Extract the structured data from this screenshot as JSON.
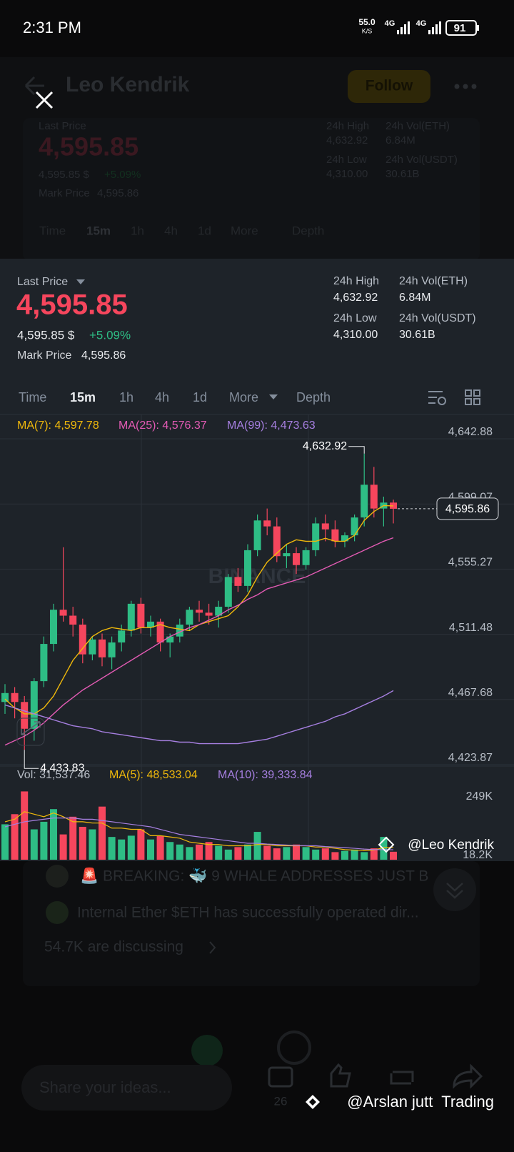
{
  "status_bar": {
    "time": "2:31 PM",
    "speed": "55.0",
    "speed_unit": "K/S",
    "network1": "4G",
    "network2": "4G",
    "battery": "91"
  },
  "background": {
    "author": "Leo Kendrik",
    "follow": "Follow",
    "posts": [
      "🚨 BREAKING: 🐳 9 WHALE ADDRESSES JUST B",
      "Internal Ether $ETH has successfully operated dir..."
    ],
    "discussing": "54.7K are discussing",
    "comment_placeholder": "Share your ideas...",
    "comment_count": "26"
  },
  "ticker": {
    "last_price_label": "Last Price",
    "last_price": "4,595.85",
    "usd_price": "4,595.85 $",
    "change": "+5.09%",
    "mark_price_label": "Mark Price",
    "mark_price": "4,595.86",
    "stats": [
      {
        "label": "24h High",
        "value": "4,632.92"
      },
      {
        "label": "24h Vol(ETH)",
        "value": "6.84M"
      },
      {
        "label": "24h Low",
        "value": "4,310.00"
      },
      {
        "label": "24h Vol(USDT)",
        "value": "30.61B"
      }
    ]
  },
  "intervals": [
    "Time",
    "15m",
    "1h",
    "4h",
    "1d",
    "More",
    "Depth"
  ],
  "active_interval": 1,
  "chart_data": [
    {
      "type": "candlestick",
      "open": [
        4466,
        4472,
        4466,
        4448,
        4480,
        4505,
        4528,
        4524,
        4518,
        4498,
        4508,
        4496,
        4506,
        4514,
        4532,
        4516,
        4520,
        4506,
        4510,
        4518,
        4528,
        4526,
        4524,
        4530,
        4550,
        4544,
        4568,
        4588,
        4584,
        4564,
        4566,
        4558,
        4568,
        4586,
        4582,
        4574,
        4578,
        4590,
        4612,
        4596,
        4600
      ],
      "high": [
        4478,
        4476,
        4470,
        4482,
        4510,
        4532,
        4570,
        4530,
        4522,
        4510,
        4512,
        4510,
        4518,
        4534,
        4536,
        4524,
        4522,
        4512,
        4522,
        4530,
        4534,
        4532,
        4534,
        4552,
        4556,
        4572,
        4592,
        4596,
        4590,
        4572,
        4570,
        4570,
        4590,
        4592,
        4588,
        4580,
        4592,
        4632.92,
        4624,
        4604,
        4602
      ],
      "low": [
        4458,
        4455,
        4433.83,
        4440,
        4476,
        4500,
        4520,
        4510,
        4492,
        4494,
        4490,
        4488,
        4500,
        4510,
        4512,
        4510,
        4500,
        4496,
        4506,
        4514,
        4520,
        4518,
        4516,
        4526,
        4540,
        4540,
        4564,
        4578,
        4560,
        4556,
        4552,
        4555,
        4564,
        4574,
        4570,
        4570,
        4574,
        4584,
        4590,
        4584,
        4586
      ],
      "close": [
        4472,
        4466,
        4448,
        4480,
        4505,
        4528,
        4524,
        4518,
        4498,
        4508,
        4496,
        4506,
        4514,
        4532,
        4516,
        4520,
        4506,
        4510,
        4518,
        4528,
        4526,
        4524,
        4530,
        4550,
        4544,
        4568,
        4588,
        4584,
        4564,
        4566,
        4558,
        4568,
        4586,
        4582,
        4574,
        4578,
        4590,
        4612,
        4596,
        4600,
        4595.85
      ],
      "up_color": "#2ebd85",
      "down_color": "#f6465d",
      "lines": [
        {
          "name": "MA(7): 4,597.78",
          "color": "#f0b90b",
          "values": [
            4468,
            4462,
            4458,
            4458,
            4462,
            4470,
            4482,
            4494,
            4502,
            4510,
            4514,
            4516,
            4515,
            4514,
            4516,
            4516,
            4518,
            4516,
            4515,
            4514,
            4518,
            4520,
            4522,
            4524,
            4530,
            4538,
            4550,
            4560,
            4566,
            4572,
            4575,
            4574,
            4574,
            4576,
            4574,
            4574,
            4578,
            4588,
            4594,
            4598,
            4597.78
          ]
        },
        {
          "name": "MA(25): 4,576.37",
          "color": "#e35bb4",
          "values": [
            4437,
            4440,
            4443,
            4447,
            4452,
            4458,
            4464,
            4469,
            4474,
            4478,
            4482,
            4486,
            4490,
            4494,
            4498,
            4502,
            4506,
            4510,
            4513,
            4516,
            4518,
            4521,
            4524,
            4528,
            4531,
            4535,
            4538,
            4542,
            4544,
            4546,
            4548,
            4550,
            4553,
            4556,
            4559,
            4562,
            4565,
            4568,
            4571,
            4574,
            4576.37
          ]
        },
        {
          "name": "MA(99): 4,473.63",
          "color": "#a67fe0",
          "values": [
            4464,
            4462,
            4460,
            4458,
            4456,
            4454,
            4452,
            4450,
            4449,
            4448,
            4446,
            4445,
            4444,
            4443,
            4442,
            4441,
            4440,
            4440,
            4439,
            4439,
            4438,
            4438,
            4438,
            4438,
            4438,
            4439,
            4440,
            4441,
            4443,
            4445,
            4447,
            4449,
            4451,
            4453,
            4456,
            4458,
            4461,
            4464,
            4467,
            4470,
            4473.63
          ]
        }
      ],
      "ylim": [
        4423.87,
        4642.88
      ],
      "yticks": [
        {
          "value": 4642.88,
          "label": "4,642.88"
        },
        {
          "value": 4599.07,
          "label": "4,599.07"
        },
        {
          "value": 4555.27,
          "label": "4,555.27"
        },
        {
          "value": 4511.48,
          "label": "4,511.48"
        },
        {
          "value": 4467.68,
          "label": "4,467.68"
        },
        {
          "value": 4423.87,
          "label": "4,423.87"
        }
      ],
      "annotations": [
        {
          "value": 4632.92,
          "label": "4,632.92"
        },
        {
          "value": 4433.83,
          "label": "4,433.83"
        }
      ],
      "price_line": {
        "value": 4595.86,
        "label": "4,595.86"
      }
    },
    {
      "type": "bar",
      "series": [
        {
          "name": "Vol: 31,537.46",
          "values": [
            140,
            180,
            270,
            120,
            150,
            200,
            100,
            170,
            130,
            120,
            210,
            90,
            80,
            95,
            120,
            80,
            95,
            70,
            60,
            50,
            60,
            70,
            55,
            40,
            50,
            60,
            110,
            55,
            45,
            50,
            60,
            50,
            40,
            45,
            30,
            35,
            40,
            30,
            45,
            90,
            31.53746
          ]
        }
      ],
      "lines": [
        {
          "name": "MA(5): 48,533.04",
          "color": "#f0b90b",
          "values": [
            150,
            160,
            190,
            180,
            170,
            185,
            170,
            150,
            150,
            145,
            145,
            125,
            125,
            120,
            120,
            95,
            95,
            90,
            85,
            70,
            65,
            60,
            60,
            55,
            55,
            55,
            60,
            60,
            55,
            55,
            55,
            55,
            50,
            50,
            45,
            40,
            38,
            36,
            38,
            48,
            48.53304
          ]
        },
        {
          "name": "MA(10): 39,333.84",
          "color": "#a67fe0",
          "values": [
            130,
            140,
            150,
            155,
            160,
            165,
            165,
            165,
            160,
            160,
            155,
            150,
            145,
            140,
            135,
            130,
            120,
            110,
            100,
            95,
            90,
            85,
            80,
            75,
            70,
            65,
            65,
            62,
            60,
            58,
            56,
            55,
            55,
            52,
            50,
            48,
            45,
            42,
            40,
            40,
            39.33384
          ]
        }
      ],
      "ylim": [
        0,
        291
      ],
      "yticks": [
        {
          "value": 249,
          "label": "249K"
        },
        {
          "value": 18.2,
          "label": "18.2K"
        }
      ]
    }
  ],
  "watermarks": {
    "center": "BINANCE",
    "chart": "@Leo Kendrik",
    "footer": "@Arslan jutt  Trading"
  }
}
